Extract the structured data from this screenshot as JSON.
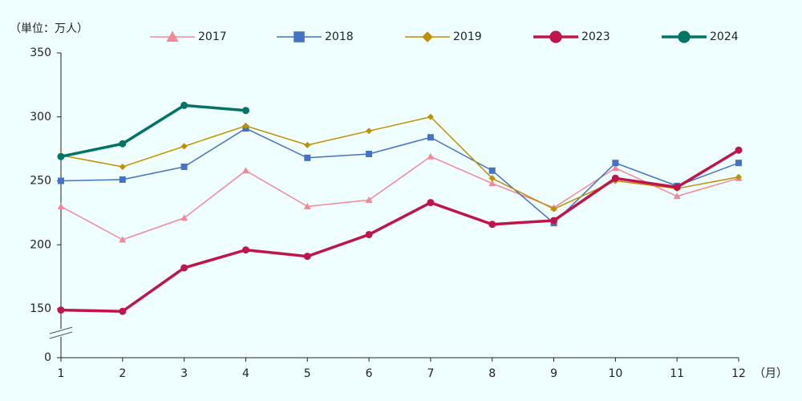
{
  "chart_data": {
    "type": "line",
    "y_unit_label": "（単位：万人）",
    "x_unit_label": "（月）",
    "categories": [
      "1",
      "2",
      "3",
      "4",
      "5",
      "6",
      "7",
      "8",
      "9",
      "10",
      "11",
      "12"
    ],
    "series": [
      {
        "name": "2017",
        "color": "#f4889a",
        "marker": "triangle",
        "width": 1.5,
        "values": [
          230,
          204,
          221,
          258,
          230,
          235,
          269,
          248,
          229,
          260,
          238,
          252
        ]
      },
      {
        "name": "2018",
        "color": "#4472c4",
        "marker": "square",
        "width": 1.5,
        "values": [
          250,
          251,
          261,
          291,
          268,
          271,
          284,
          258,
          217,
          264,
          246,
          264
        ]
      },
      {
        "name": "2019",
        "color": "#bf9000",
        "marker": "diamond",
        "width": 1.5,
        "values": [
          270,
          261,
          277,
          293,
          278,
          289,
          300,
          252,
          228,
          250,
          244,
          253
        ]
      },
      {
        "name": "2023",
        "color": "#c0144a",
        "marker": "circle",
        "width": 3.5,
        "values": [
          149,
          148,
          182,
          196,
          191,
          208,
          233,
          216,
          219,
          252,
          245,
          274
        ]
      },
      {
        "name": "2024",
        "color": "#007566",
        "marker": "circle",
        "width": 3.5,
        "values": [
          269,
          279,
          309,
          305,
          null,
          null,
          null,
          null,
          null,
          null,
          null,
          null
        ]
      }
    ],
    "ylim": [
      0,
      350
    ],
    "yticks": [
      0,
      150,
      200,
      250,
      300,
      350
    ],
    "axis_break": true,
    "legend": "top"
  }
}
